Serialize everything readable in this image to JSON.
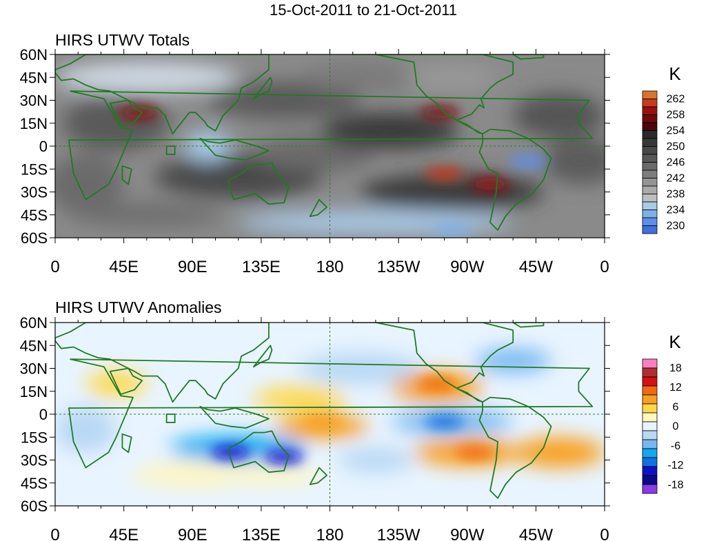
{
  "title": "15-Oct-2011 to 21-Oct-2011",
  "panels": [
    {
      "id": "totals",
      "title": "HIRS UTWV Totals",
      "colorbar": {
        "unit": "K",
        "labels": [
          "262",
          "258",
          "254",
          "250",
          "246",
          "242",
          "238",
          "234",
          "230"
        ],
        "colors": [
          "#d8752a",
          "#c83a1e",
          "#9a1010",
          "#6e0a0a",
          "#4a0808",
          "#2a2a2a",
          "#383838",
          "#484848",
          "#585858",
          "#6a6a6a",
          "#7e7e7e",
          "#949494",
          "#aaaaaa",
          "#bebebe",
          "#a8cbe8",
          "#7fb0e6",
          "#5d8ee8",
          "#4070d8",
          "#3a5ab8",
          "#1a2a78"
        ]
      },
      "ocean_tint": "#8a8a8a",
      "features": [
        {
          "label": "max",
          "lon": 55,
          "lat": 22,
          "value": 258,
          "color": "#8b0d0d"
        },
        {
          "label": "max",
          "lon": 252,
          "lat": 22,
          "value": 256,
          "color": "#7a0b0b"
        },
        {
          "label": "max",
          "lon": 255,
          "lat": -18,
          "value": 260,
          "color": "#c83a1e"
        },
        {
          "label": "max",
          "lon": 285,
          "lat": -25,
          "value": 257,
          "color": "#9a1010"
        },
        {
          "label": "min",
          "lon": 310,
          "lat": -10,
          "value": 234,
          "color": "#5d8ee8"
        },
        {
          "label": "min",
          "lon": 260,
          "lat": -55,
          "value": 234,
          "color": "#7fb0e6"
        }
      ]
    },
    {
      "id": "anomalies",
      "title": "HIRS UTWV Anomalies",
      "colorbar": {
        "unit": "K",
        "labels": [
          "18",
          "12",
          "6",
          "0",
          "-6",
          "-12",
          "-18"
        ],
        "colors": [
          "#ff7ec0",
          "#b03030",
          "#d81010",
          "#f06a10",
          "#f8a020",
          "#ffd84a",
          "#fff6c0",
          "#e8f4ff",
          "#b8d8f4",
          "#78b8f0",
          "#10a8f0",
          "#1070e0",
          "#1010c8",
          "#0a0a88",
          "#8a3ae8"
        ]
      },
      "ocean_tint": "#e8f4ff",
      "features": [
        {
          "label": "max",
          "lon": 250,
          "lat": 20,
          "value": 10,
          "color": "#f06a10"
        },
        {
          "label": "max",
          "lon": 275,
          "lat": -25,
          "value": 9,
          "color": "#f06a10"
        },
        {
          "label": "max",
          "lon": 175,
          "lat": -5,
          "value": 7,
          "color": "#f8a020"
        },
        {
          "label": "min",
          "lon": 150,
          "lat": -28,
          "value": -14,
          "color": "#1010c8"
        },
        {
          "label": "min",
          "lon": 115,
          "lat": -25,
          "value": -12,
          "color": "#1010c8"
        },
        {
          "label": "min",
          "lon": 255,
          "lat": -5,
          "value": -9,
          "color": "#1070e0"
        }
      ]
    }
  ],
  "axes": {
    "lat_ticks": [
      "60N",
      "45N",
      "30N",
      "15N",
      "0",
      "15S",
      "30S",
      "45S",
      "60S"
    ],
    "lon_ticks": [
      "0",
      "45E",
      "90E",
      "135E",
      "180",
      "135W",
      "90W",
      "45W",
      "0"
    ]
  },
  "colors": {
    "coast": "#1f7a1f",
    "dateline": "#2e7d2e"
  }
}
